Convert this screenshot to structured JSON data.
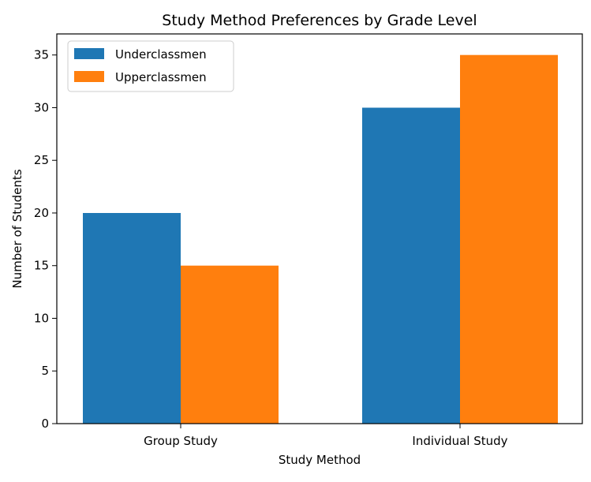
{
  "chart_data": {
    "type": "bar",
    "title": "Study Method Preferences by Grade Level",
    "xlabel": "Study Method",
    "ylabel": "Number of Students",
    "categories": [
      "Group Study",
      "Individual Study"
    ],
    "series": [
      {
        "name": "Underclassmen",
        "values": [
          20,
          30
        ],
        "color": "#1f77b4"
      },
      {
        "name": "Upperclassmen",
        "values": [
          15,
          35
        ],
        "color": "#ff7f0e"
      }
    ],
    "ylim": [
      0,
      37
    ],
    "yticks": [
      0,
      5,
      10,
      15,
      20,
      25,
      30,
      35
    ],
    "ytick_labels": [
      "0",
      "5",
      "10",
      "15",
      "20",
      "25",
      "30",
      "35"
    ],
    "grid": false,
    "legend": "top-left"
  }
}
